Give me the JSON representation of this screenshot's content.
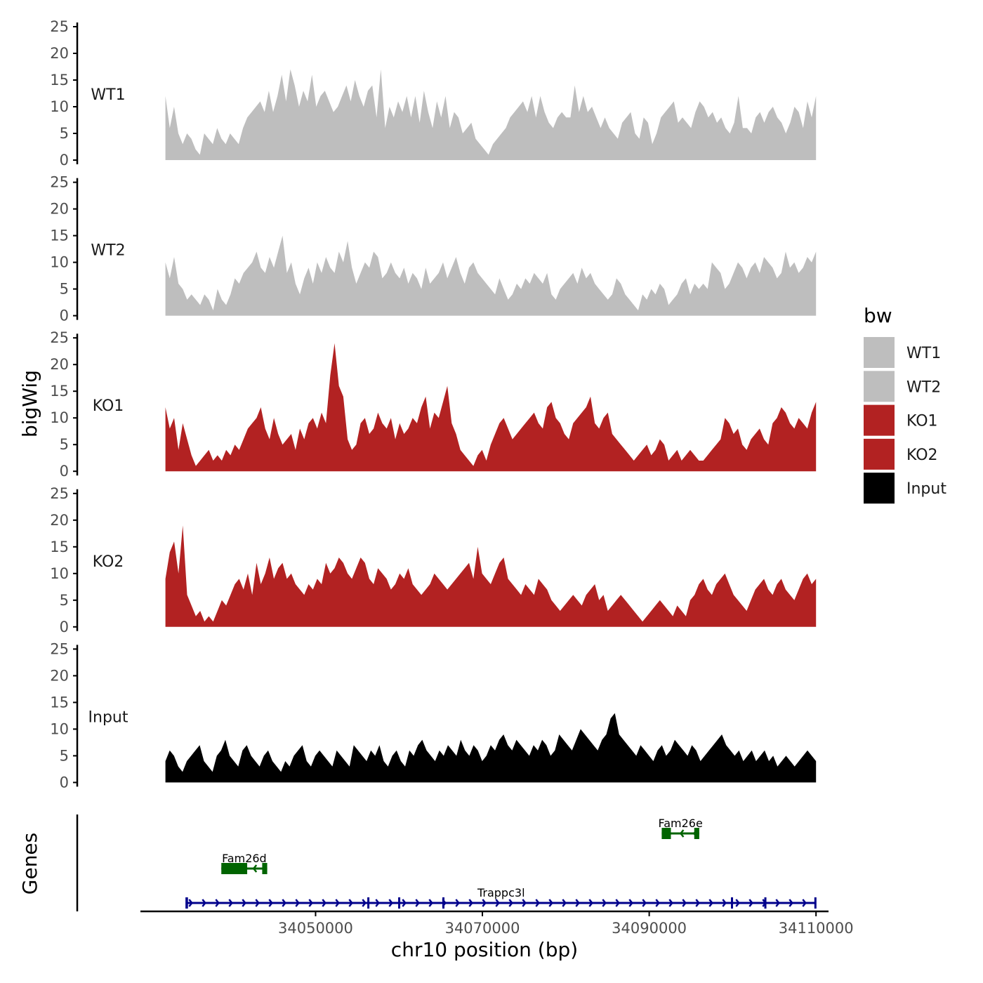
{
  "chart_data": {
    "type": "area",
    "title": "",
    "xlabel": "chr10 position (bp)",
    "ylabel": "bigWig",
    "genes_label": "Genes",
    "chromosome": "chr10",
    "xlim": [
      34029000,
      34111500
    ],
    "x_ticks": [
      34050000,
      34070000,
      34090000,
      34110000
    ],
    "x_tick_labels": [
      "34050000",
      "34070000",
      "34090000",
      "34110000"
    ],
    "ylim": [
      0,
      25
    ],
    "y_ticks": [
      0,
      5,
      10,
      15,
      20,
      25
    ],
    "y_tick_labels": [
      "0",
      "5",
      "10",
      "15",
      "20",
      "25"
    ],
    "signal_start": 34032000,
    "signal_end": 34110000,
    "legend": {
      "title": "bw",
      "placement": "right",
      "entries": [
        {
          "label": "WT1",
          "color": "#bebebe"
        },
        {
          "label": "WT2",
          "color": "#bebebe"
        },
        {
          "label": "KO1",
          "color": "#b22222"
        },
        {
          "label": "KO2",
          "color": "#b22222"
        },
        {
          "label": "Input",
          "color": "#000000"
        }
      ]
    },
    "series": [
      {
        "name": "WT1",
        "color": "#bebebe",
        "values": [
          12,
          6,
          10,
          5,
          3,
          5,
          4,
          2,
          1,
          5,
          4,
          3,
          6,
          4,
          3,
          5,
          4,
          3,
          6,
          8,
          9,
          10,
          11,
          9,
          13,
          9,
          12,
          16,
          11,
          17,
          14,
          10,
          13,
          11,
          16,
          10,
          12,
          13,
          11,
          9,
          10,
          12,
          14,
          11,
          15,
          12,
          10,
          13,
          14,
          8,
          17,
          6,
          10,
          8,
          11,
          9,
          12,
          8,
          12,
          7,
          13,
          9,
          6,
          11,
          8,
          12,
          6,
          9,
          8,
          5,
          6,
          7,
          4,
          3,
          2,
          1,
          3,
          4,
          5,
          6,
          8,
          9,
          10,
          11,
          9,
          12,
          8,
          12,
          9,
          7,
          6,
          8,
          9,
          8,
          8,
          14,
          9,
          12,
          9,
          10,
          8,
          6,
          8,
          6,
          5,
          4,
          7,
          8,
          9,
          5,
          4,
          8,
          7,
          3,
          5,
          8,
          9,
          10,
          11,
          7,
          8,
          7,
          6,
          9,
          11,
          10,
          8,
          9,
          7,
          8,
          6,
          5,
          7,
          12,
          6,
          6,
          5,
          8,
          9,
          7,
          9,
          10,
          8,
          7,
          5,
          7,
          10,
          9,
          6,
          11,
          8,
          12
        ]
      },
      {
        "name": "WT2",
        "color": "#bebebe",
        "values": [
          10,
          7,
          11,
          6,
          5,
          3,
          4,
          3,
          2,
          4,
          3,
          1,
          5,
          3,
          2,
          4,
          7,
          6,
          8,
          9,
          10,
          12,
          9,
          8,
          11,
          9,
          12,
          15,
          8,
          10,
          6,
          4,
          7,
          9,
          6,
          10,
          8,
          11,
          9,
          8,
          12,
          10,
          14,
          9,
          6,
          8,
          10,
          9,
          12,
          11,
          7,
          8,
          10,
          8,
          7,
          9,
          6,
          8,
          7,
          5,
          9,
          6,
          7,
          8,
          10,
          7,
          9,
          11,
          8,
          6,
          9,
          10,
          8,
          7,
          6,
          5,
          4,
          7,
          5,
          3,
          4,
          6,
          5,
          7,
          6,
          8,
          7,
          6,
          8,
          4,
          3,
          5,
          6,
          7,
          8,
          6,
          9,
          7,
          8,
          6,
          5,
          4,
          3,
          4,
          7,
          6,
          4,
          3,
          2,
          1,
          4,
          3,
          5,
          4,
          6,
          5,
          2,
          3,
          4,
          6,
          7,
          4,
          6,
          5,
          6,
          5,
          10,
          9,
          8,
          5,
          6,
          8,
          10,
          9,
          7,
          9,
          10,
          8,
          11,
          10,
          9,
          7,
          8,
          12,
          9,
          10,
          8,
          9,
          11,
          10,
          12
        ]
      },
      {
        "name": "KO1",
        "color": "#b22222",
        "values": [
          12,
          8,
          10,
          4,
          9,
          6,
          3,
          1,
          2,
          3,
          4,
          2,
          3,
          2,
          4,
          3,
          5,
          4,
          6,
          8,
          9,
          10,
          12,
          8,
          6,
          10,
          7,
          5,
          6,
          7,
          4,
          8,
          6,
          9,
          10,
          8,
          11,
          9,
          18,
          24,
          16,
          14,
          6,
          4,
          5,
          9,
          10,
          7,
          8,
          11,
          9,
          8,
          10,
          6,
          9,
          7,
          8,
          10,
          9,
          12,
          14,
          8,
          11,
          10,
          13,
          16,
          9,
          7,
          4,
          3,
          2,
          1,
          3,
          4,
          2,
          5,
          7,
          9,
          10,
          8,
          6,
          7,
          8,
          9,
          10,
          11,
          9,
          8,
          12,
          13,
          10,
          9,
          7,
          6,
          9,
          10,
          11,
          12,
          14,
          9,
          8,
          10,
          11,
          7,
          6,
          5,
          4,
          3,
          2,
          3,
          4,
          5,
          3,
          4,
          6,
          5,
          2,
          3,
          4,
          2,
          3,
          4,
          3,
          2,
          2,
          3,
          4,
          5,
          6,
          10,
          9,
          7,
          8,
          5,
          4,
          6,
          7,
          8,
          6,
          5,
          9,
          10,
          12,
          11,
          9,
          8,
          10,
          9,
          8,
          11,
          13
        ]
      },
      {
        "name": "KO2",
        "color": "#b22222",
        "values": [
          9,
          14,
          16,
          10,
          19,
          6,
          4,
          2,
          3,
          1,
          2,
          1,
          3,
          5,
          4,
          6,
          8,
          9,
          7,
          10,
          6,
          12,
          8,
          10,
          13,
          9,
          11,
          12,
          9,
          10,
          8,
          7,
          6,
          8,
          7,
          9,
          8,
          12,
          10,
          11,
          13,
          12,
          10,
          9,
          11,
          13,
          12,
          9,
          8,
          11,
          10,
          9,
          7,
          8,
          10,
          9,
          11,
          8,
          7,
          6,
          7,
          8,
          10,
          9,
          8,
          7,
          8,
          9,
          10,
          11,
          12,
          9,
          15,
          10,
          9,
          8,
          10,
          12,
          13,
          9,
          8,
          7,
          6,
          8,
          7,
          6,
          9,
          8,
          7,
          5,
          4,
          3,
          4,
          5,
          6,
          5,
          4,
          6,
          7,
          8,
          5,
          6,
          3,
          4,
          5,
          6,
          5,
          4,
          3,
          2,
          1,
          2,
          3,
          4,
          5,
          4,
          3,
          2,
          4,
          3,
          2,
          5,
          6,
          8,
          9,
          7,
          6,
          8,
          9,
          10,
          8,
          6,
          5,
          4,
          3,
          5,
          7,
          8,
          9,
          7,
          6,
          8,
          9,
          7,
          6,
          5,
          7,
          9,
          10,
          8,
          9
        ]
      },
      {
        "name": "Input",
        "color": "#000000",
        "values": [
          4,
          6,
          5,
          3,
          2,
          4,
          5,
          6,
          7,
          4,
          3,
          2,
          5,
          6,
          8,
          5,
          4,
          3,
          6,
          7,
          5,
          4,
          3,
          5,
          6,
          4,
          3,
          2,
          4,
          3,
          5,
          6,
          7,
          4,
          3,
          5,
          6,
          5,
          4,
          3,
          6,
          5,
          4,
          3,
          7,
          6,
          5,
          4,
          6,
          5,
          7,
          4,
          3,
          5,
          6,
          4,
          3,
          6,
          5,
          7,
          8,
          6,
          5,
          4,
          6,
          5,
          7,
          6,
          5,
          8,
          6,
          5,
          7,
          6,
          4,
          5,
          7,
          6,
          8,
          9,
          7,
          6,
          8,
          7,
          6,
          5,
          7,
          6,
          8,
          7,
          5,
          6,
          9,
          8,
          7,
          6,
          8,
          10,
          9,
          8,
          7,
          6,
          8,
          9,
          12,
          13,
          9,
          8,
          7,
          6,
          5,
          7,
          6,
          5,
          4,
          6,
          7,
          5,
          6,
          8,
          7,
          6,
          5,
          7,
          6,
          4,
          5,
          6,
          7,
          8,
          9,
          7,
          6,
          5,
          6,
          4,
          5,
          6,
          4,
          5,
          6,
          4,
          5,
          3,
          4,
          5,
          4,
          3,
          4,
          5,
          6,
          5,
          4
        ]
      }
    ],
    "genes": [
      {
        "name": "Fam26e",
        "strand": "-",
        "start": 34091500,
        "end": 34096000,
        "color": "#006400",
        "row": 2,
        "exons": [
          [
            34091500,
            34092600
          ],
          [
            34095400,
            34096000
          ]
        ]
      },
      {
        "name": "Fam26d",
        "strand": "-",
        "start": 34038700,
        "end": 34044200,
        "color": "#006400",
        "row": 1,
        "exons": [
          [
            34038700,
            34041800
          ],
          [
            34043600,
            34044200
          ]
        ]
      },
      {
        "name": "Trappc3l",
        "strand": "+",
        "start": 34034500,
        "end": 34110000,
        "color": "#00008b",
        "row": 0,
        "exons": [
          [
            34034400,
            34034700
          ],
          [
            34056200,
            34056400
          ],
          [
            34059900,
            34060100
          ],
          [
            34065200,
            34065400
          ],
          [
            34099800,
            34100000
          ],
          [
            34103800,
            34104000
          ],
          [
            34109800,
            34110000
          ]
        ]
      }
    ]
  }
}
